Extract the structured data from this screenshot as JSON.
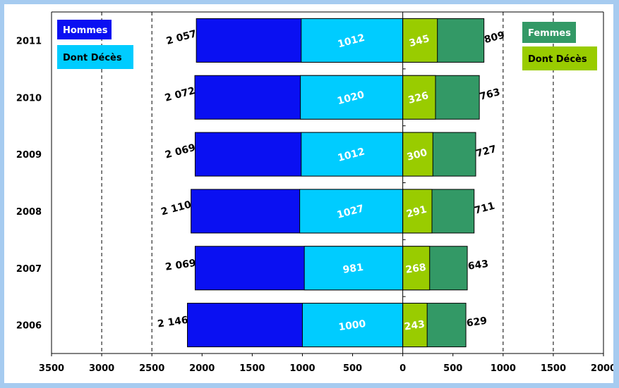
{
  "colors": {
    "page_background": "#a6cbf0",
    "hommes": "#0a10f2",
    "hommes_deces": "#00ccff",
    "femmes": "#339966",
    "femmes_deces": "#99cc00",
    "label_white": "#ffffff",
    "label_black": "#000000"
  },
  "chart_data": {
    "type": "bar",
    "orientation": "horizontal",
    "layout": "population-pyramid (men plotted to the left of 0, women to the right)",
    "categories": [
      "2006",
      "2007",
      "2008",
      "2009",
      "2010",
      "2011"
    ],
    "series": [
      {
        "name": "Hommes",
        "side": "left",
        "values": [
          2146,
          2069,
          2110,
          2069,
          2072,
          2057
        ]
      },
      {
        "name": "Dont Décès",
        "side": "left",
        "values": [
          1000,
          981,
          1027,
          1012,
          1020,
          1012
        ]
      },
      {
        "name": "Femmes",
        "side": "right",
        "values": [
          629,
          643,
          711,
          727,
          763,
          809
        ]
      },
      {
        "name": "Dont Décès",
        "side": "right",
        "values": [
          243,
          268,
          291,
          300,
          326,
          345
        ]
      }
    ],
    "value_labels": {
      "hommes": [
        "2 146",
        "2 069",
        "2 110",
        "2 069",
        "2 072",
        "2 057"
      ],
      "hommes_deces": [
        "1000",
        "981",
        "1027",
        "1012",
        "1020",
        "1012"
      ],
      "femmes": [
        "629",
        "643",
        "711",
        "727",
        "763",
        "809"
      ],
      "femmes_deces": [
        "243",
        "268",
        "291",
        "300",
        "326",
        "345"
      ]
    },
    "x_tick_labels": [
      "3500",
      "3000",
      "2500",
      "2000",
      "1500",
      "1000",
      "500",
      "0",
      "500",
      "1000",
      "1500",
      "2000"
    ],
    "x_ticks": [
      -3500,
      -3000,
      -2500,
      -2000,
      -1500,
      -1000,
      -500,
      0,
      500,
      1000,
      1500,
      2000
    ],
    "xlim": [
      -3500,
      2000
    ],
    "dashed_gridlines": [
      -3000,
      -2500,
      1000,
      1500
    ],
    "xlabel": "",
    "ylabel": "",
    "title": "",
    "legend": {
      "left": [
        {
          "label": "Hommes",
          "series": "hommes"
        },
        {
          "label": "Dont Décès",
          "series": "hommes_deces"
        }
      ],
      "right": [
        {
          "label": "Femmes",
          "series": "femmes"
        },
        {
          "label": "Dont Décès",
          "series": "femmes_deces"
        }
      ]
    }
  }
}
